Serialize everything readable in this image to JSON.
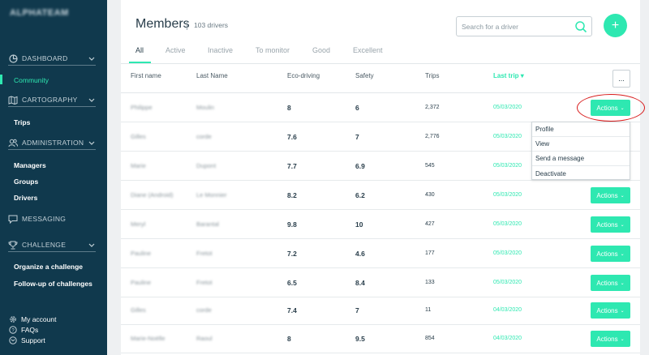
{
  "sidebar": {
    "brand": "ALPHATEAM",
    "sections": [
      {
        "label": "DASHBOARD",
        "icon": "pie-chart-icon"
      },
      {
        "label": "CARTOGRAPHY",
        "icon": "map-icon"
      },
      {
        "label": "ADMINISTRATION",
        "icon": "users-icon"
      },
      {
        "label": "MESSAGING",
        "icon": "chat-icon"
      },
      {
        "label": "CHALLENGE",
        "icon": "trophy-icon"
      }
    ],
    "items": {
      "community": "Community",
      "trips": "Trips",
      "managers": "Managers",
      "groups": "Groups",
      "drivers": "Drivers",
      "organize": "Organize a challenge",
      "followup": "Follow-up of challenges"
    },
    "footer": {
      "account": "My account",
      "faqs": "FAQs",
      "support": "Support"
    },
    "accent_color": "#2ee8b1",
    "bg_color": "#10394d"
  },
  "header": {
    "title": "Members",
    "count": "103 drivers",
    "search_placeholder": "Search for a driver",
    "add_label": "+"
  },
  "tabs": [
    "All",
    "Active",
    "Inactive",
    "To monitor",
    "Good",
    "Excellent"
  ],
  "table": {
    "columns": [
      "First name",
      "Last Name",
      "Eco-driving",
      "Safety",
      "Trips",
      "Last trip ▾"
    ],
    "more_label": "...",
    "action_label": "Actions",
    "rows": [
      {
        "first": "Philippe",
        "last": "Moulin",
        "eco": "8",
        "safety": "6",
        "trips": "2,372",
        "date": "05/03/2020"
      },
      {
        "first": "Gilles",
        "last": "corde",
        "eco": "7.6",
        "safety": "7",
        "trips": "2,776",
        "date": "05/03/2020"
      },
      {
        "first": "Marie",
        "last": "Dupont",
        "eco": "7.7",
        "safety": "6.9",
        "trips": "545",
        "date": "05/03/2020"
      },
      {
        "first": "Diane (Android)",
        "last": "Le Monnier",
        "eco": "8.2",
        "safety": "6.2",
        "trips": "430",
        "date": "05/03/2020"
      },
      {
        "first": "Meryl",
        "last": "Barantal",
        "eco": "9.8",
        "safety": "10",
        "trips": "427",
        "date": "05/03/2020"
      },
      {
        "first": "Pauline",
        "last": "Fretot",
        "eco": "7.2",
        "safety": "4.6",
        "trips": "177",
        "date": "05/03/2020"
      },
      {
        "first": "Pauline",
        "last": "Fretot",
        "eco": "6.5",
        "safety": "8.4",
        "trips": "133",
        "date": "05/03/2020"
      },
      {
        "first": "Gilles",
        "last": "corde",
        "eco": "7.4",
        "safety": "7",
        "trips": "11",
        "date": "04/03/2020"
      },
      {
        "first": "Marie-Noëlle",
        "last": "Raoul",
        "eco": "8",
        "safety": "9.5",
        "trips": "854",
        "date": "04/03/2020"
      }
    ]
  },
  "dropdown": [
    "Profile",
    "View",
    "Send a message",
    "Deactivate"
  ]
}
